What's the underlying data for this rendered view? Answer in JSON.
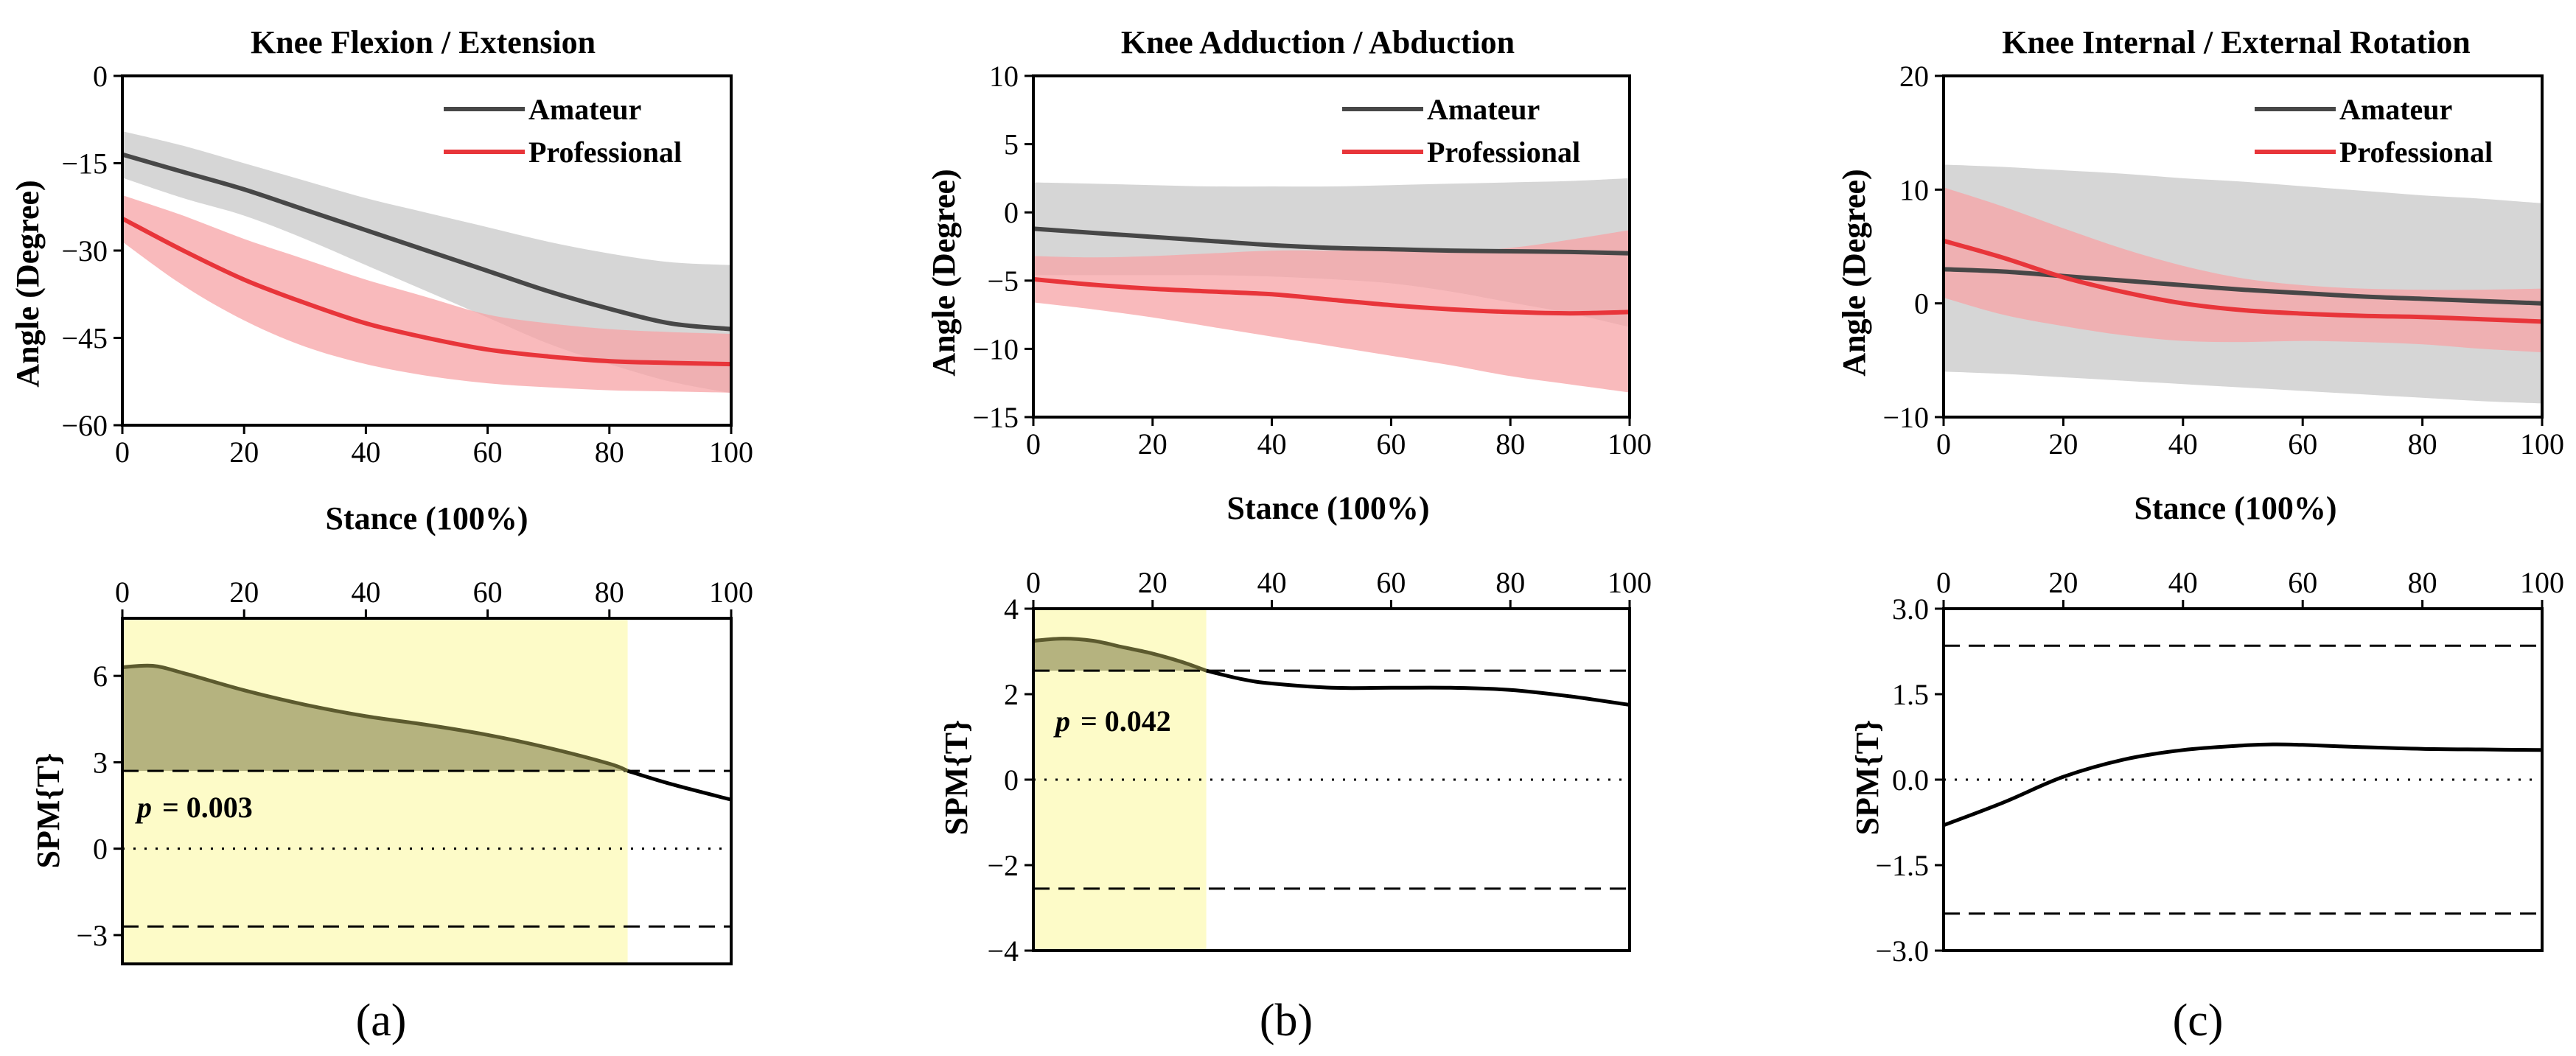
{
  "colors": {
    "amateur": "#474747",
    "amateur_band": "#d6d6d6",
    "professional": "#e8353a",
    "professional_band": "#f7a3a6",
    "spm_highlight": "#fdfbc8",
    "spm_fill": "#b5b37f",
    "spm_line_sig": "#5c5a2e"
  },
  "chart_data": [
    {
      "panel": "a",
      "type": "line",
      "title": "Knee Flexion / Extension",
      "xlabel": "Stance (100%)",
      "ylabel": "Angle (Degree)",
      "xlim": [
        0,
        100
      ],
      "ylim": [
        -60,
        0
      ],
      "xticks": [
        "0",
        "20",
        "40",
        "60",
        "80",
        "100"
      ],
      "yticks": [
        "0",
        "−15",
        "−30",
        "−45",
        "−60"
      ],
      "legend": [
        "Amateur",
        "Professional"
      ],
      "x": [
        0,
        10,
        20,
        30,
        40,
        50,
        60,
        70,
        80,
        90,
        100
      ],
      "series": [
        {
          "name": "Amateur",
          "values": [
            -13.5,
            -16.5,
            -19.5,
            -23,
            -26.5,
            -30,
            -33.5,
            -37,
            -40,
            -42.5,
            -43.5
          ],
          "lower": [
            -17.5,
            -21,
            -24,
            -28,
            -32.5,
            -37,
            -41.5,
            -46,
            -49.5,
            -52.5,
            -54.5
          ],
          "upper": [
            -9.5,
            -12,
            -15,
            -18,
            -21,
            -23.5,
            -26,
            -28.5,
            -30.5,
            -32,
            -32.5
          ]
        },
        {
          "name": "Professional",
          "values": [
            -24.5,
            -30,
            -35,
            -39,
            -42.5,
            -45,
            -47,
            -48.2,
            -49,
            -49.3,
            -49.5
          ],
          "lower": [
            -28.5,
            -36,
            -42,
            -46.5,
            -49.5,
            -51.5,
            -52.8,
            -53.5,
            -54,
            -54.2,
            -54.4
          ],
          "upper": [
            -20.5,
            -24,
            -28,
            -31.5,
            -35,
            -38,
            -41,
            -42.5,
            -43.5,
            -44,
            -44.3
          ]
        }
      ]
    },
    {
      "panel": "b",
      "type": "line",
      "title": "Knee Adduction / Abduction",
      "xlabel": "Stance (100%)",
      "ylabel": "Angle (Degree)",
      "xlim": [
        0,
        100
      ],
      "ylim": [
        -15,
        10
      ],
      "xticks": [
        "0",
        "20",
        "40",
        "60",
        "80",
        "100"
      ],
      "yticks": [
        "10",
        "5",
        "0",
        "−5",
        "−10",
        "−15"
      ],
      "legend": [
        "Amateur",
        "Professional"
      ],
      "x": [
        0,
        10,
        20,
        30,
        40,
        50,
        60,
        70,
        80,
        90,
        100
      ],
      "series": [
        {
          "name": "Amateur",
          "values": [
            -1.2,
            -1.5,
            -1.8,
            -2.1,
            -2.4,
            -2.6,
            -2.7,
            -2.8,
            -2.85,
            -2.9,
            -3
          ],
          "lower": [
            -4.6,
            -4.6,
            -4.6,
            -4.6,
            -4.7,
            -4.9,
            -5.2,
            -5.8,
            -6.6,
            -7.4,
            -8.4
          ],
          "upper": [
            2.2,
            2.1,
            2,
            1.9,
            1.9,
            1.9,
            2,
            2.1,
            2.2,
            2.3,
            2.5
          ]
        },
        {
          "name": "Professional",
          "values": [
            -4.9,
            -5.3,
            -5.6,
            -5.8,
            -6,
            -6.4,
            -6.8,
            -7.1,
            -7.3,
            -7.4,
            -7.3
          ],
          "lower": [
            -6.6,
            -7.1,
            -7.7,
            -8.4,
            -9.1,
            -9.8,
            -10.5,
            -11.2,
            -12,
            -12.6,
            -13.2
          ],
          "upper": [
            -3.2,
            -3.3,
            -3.2,
            -3,
            -2.8,
            -2.8,
            -2.8,
            -2.9,
            -2.6,
            -2,
            -1.3
          ]
        }
      ]
    },
    {
      "panel": "c",
      "type": "line",
      "title": "Knee Internal / External Rotation",
      "xlabel": "Stance (100%)",
      "ylabel": "Angle (Degree)",
      "xlim": [
        0,
        100
      ],
      "ylim": [
        -10,
        20
      ],
      "xticks": [
        "0",
        "20",
        "40",
        "60",
        "80",
        "100"
      ],
      "yticks": [
        "20",
        "10",
        "0",
        "−10"
      ],
      "legend": [
        "Amateur",
        "Professional"
      ],
      "x": [
        0,
        10,
        20,
        30,
        40,
        50,
        60,
        70,
        80,
        90,
        100
      ],
      "series": [
        {
          "name": "Amateur",
          "values": [
            3,
            2.8,
            2.4,
            2,
            1.6,
            1.2,
            0.9,
            0.6,
            0.4,
            0.2,
            0
          ],
          "lower": [
            -6,
            -6.2,
            -6.5,
            -6.8,
            -7.1,
            -7.4,
            -7.7,
            -8,
            -8.3,
            -8.6,
            -8.8
          ],
          "upper": [
            12.2,
            12,
            11.7,
            11.4,
            11,
            10.7,
            10.3,
            9.9,
            9.5,
            9.2,
            8.8
          ]
        },
        {
          "name": "Professional",
          "values": [
            5.5,
            4,
            2.3,
            1,
            0,
            -0.6,
            -0.9,
            -1.1,
            -1.2,
            -1.4,
            -1.6
          ],
          "lower": [
            0.5,
            -1,
            -2,
            -2.8,
            -3.3,
            -3.4,
            -3.3,
            -3.4,
            -3.6,
            -4,
            -4.3
          ],
          "upper": [
            10.2,
            8.5,
            6.6,
            4.8,
            3.3,
            2.2,
            1.6,
            1.3,
            1.2,
            1.2,
            1.3
          ]
        }
      ]
    },
    {
      "panel": "a",
      "type": "line",
      "ylabel": "SPM{T}",
      "xlim": [
        0,
        100
      ],
      "ylim": [
        -4,
        8
      ],
      "xticks": [
        "0",
        "20",
        "40",
        "60",
        "80",
        "100"
      ],
      "yticks": [
        "6",
        "3",
        "0",
        "−3"
      ],
      "threshold": 2.7,
      "sig_range": [
        0,
        83
      ],
      "p_label": "= 0.003",
      "x": [
        0,
        5,
        10,
        20,
        30,
        40,
        50,
        60,
        70,
        80,
        83,
        90,
        100
      ],
      "values": [
        6.3,
        6.35,
        6.1,
        5.5,
        5,
        4.6,
        4.3,
        3.95,
        3.5,
        2.95,
        2.7,
        2.25,
        1.7
      ]
    },
    {
      "panel": "b",
      "type": "line",
      "ylabel": "SPM{T}",
      "xlim": [
        0,
        100
      ],
      "ylim": [
        -4,
        4
      ],
      "xticks": [
        "0",
        "20",
        "40",
        "60",
        "80",
        "100"
      ],
      "yticks": [
        "4",
        "2",
        "0",
        "−2",
        "−4"
      ],
      "threshold": 2.55,
      "sig_range": [
        0,
        29
      ],
      "p_label": "= 0.042",
      "x": [
        0,
        5,
        10,
        15,
        20,
        25,
        29,
        35,
        40,
        50,
        60,
        70,
        80,
        90,
        100
      ],
      "values": [
        3.25,
        3.3,
        3.25,
        3.1,
        2.95,
        2.75,
        2.55,
        2.35,
        2.25,
        2.15,
        2.15,
        2.15,
        2.1,
        1.95,
        1.75
      ]
    },
    {
      "panel": "c",
      "type": "line",
      "ylabel": "SPM{T}",
      "xlim": [
        0,
        100
      ],
      "ylim": [
        -3,
        3
      ],
      "xticks": [
        "0",
        "20",
        "40",
        "60",
        "80",
        "100"
      ],
      "yticks": [
        "3.0",
        "1.5",
        "0.0",
        "−1.5",
        "−3.0"
      ],
      "threshold": 2.35,
      "x": [
        0,
        10,
        20,
        30,
        40,
        50,
        55,
        60,
        70,
        80,
        90,
        100
      ],
      "values": [
        -0.8,
        -0.4,
        0.05,
        0.35,
        0.52,
        0.6,
        0.62,
        0.61,
        0.57,
        0.54,
        0.53,
        0.52
      ]
    }
  ],
  "labels": {
    "panel_a": "(a)",
    "panel_b": "(b)",
    "panel_c": "(c)",
    "p_letter": "p"
  }
}
